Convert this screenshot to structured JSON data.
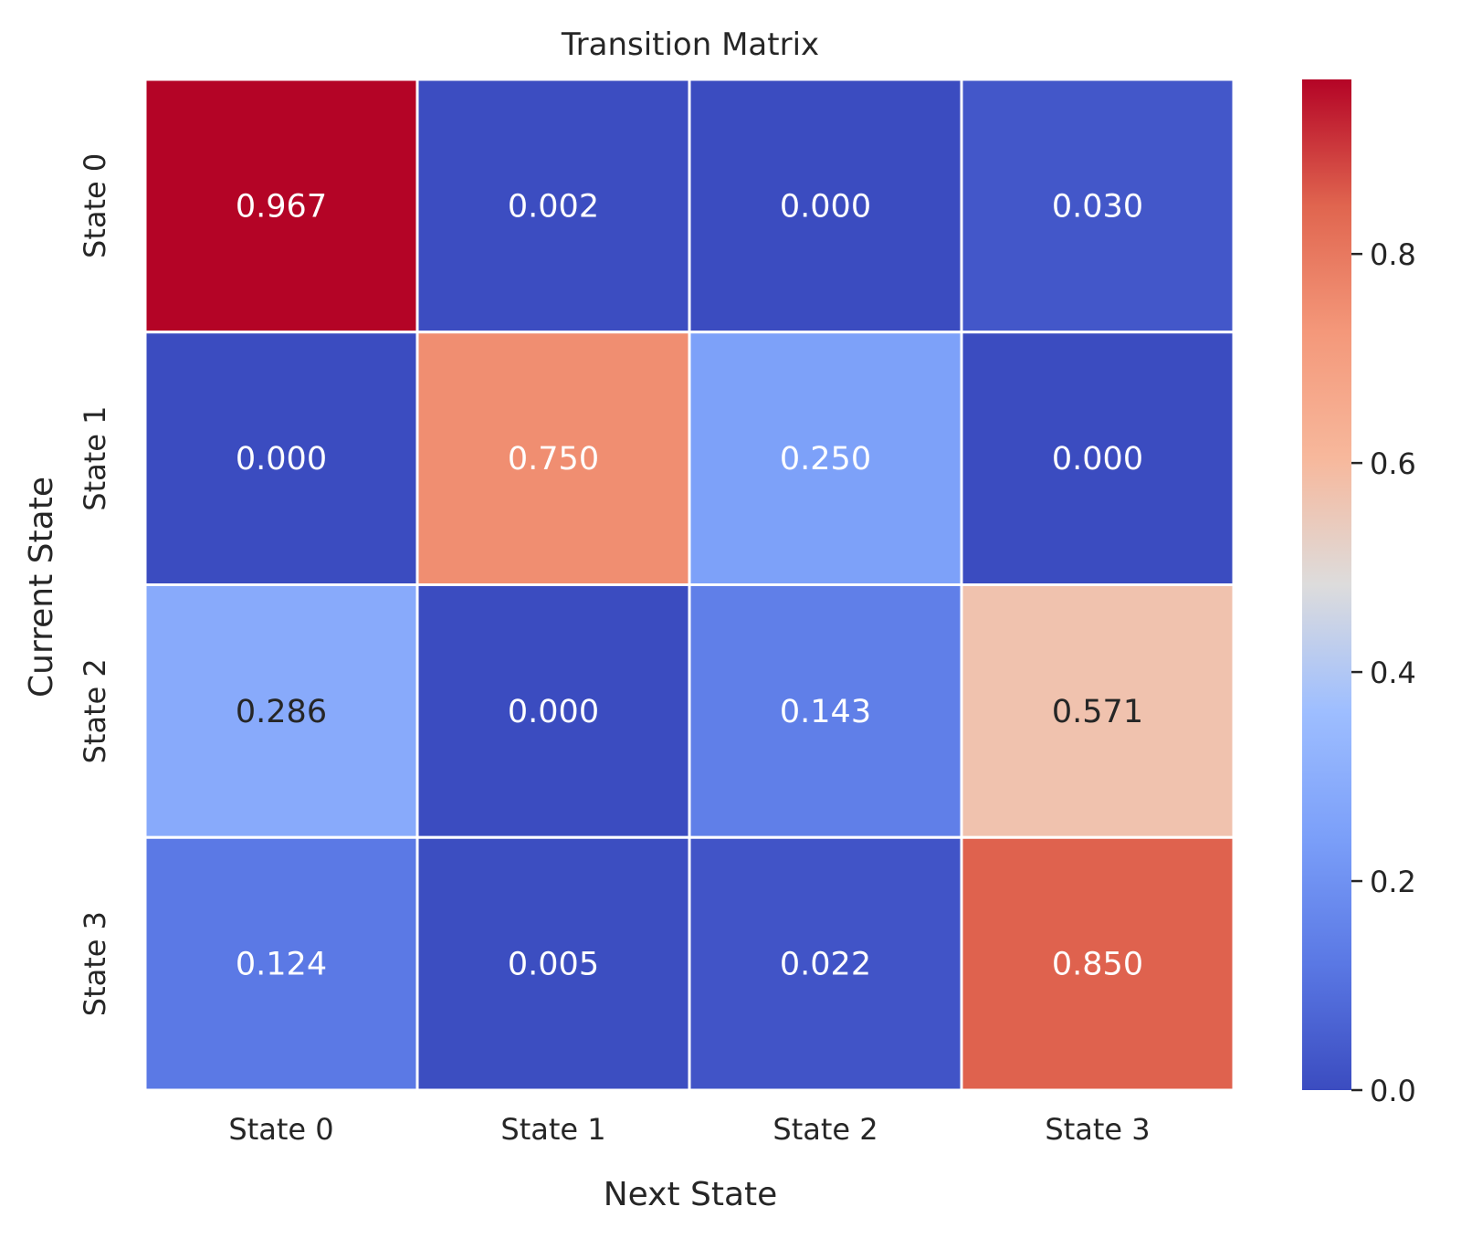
{
  "chart_data": {
    "type": "heatmap",
    "title": "Transition Matrix",
    "xlabel": "Next State",
    "ylabel": "Current State",
    "x_categories": [
      "State 0",
      "State 1",
      "State 2",
      "State 3"
    ],
    "y_categories": [
      "State 0",
      "State 1",
      "State 2",
      "State 3"
    ],
    "values": [
      [
        0.967,
        0.002,
        0.0,
        0.03
      ],
      [
        0.0,
        0.75,
        0.25,
        0.0
      ],
      [
        0.286,
        0.0,
        0.143,
        0.571
      ],
      [
        0.124,
        0.005,
        0.022,
        0.85
      ]
    ],
    "value_labels": [
      [
        "0.967",
        "0.002",
        "0.000",
        "0.030"
      ],
      [
        "0.000",
        "0.750",
        "0.250",
        "0.000"
      ],
      [
        "0.286",
        "0.000",
        "0.143",
        "0.571"
      ],
      [
        "0.124",
        "0.005",
        "0.022",
        "0.850"
      ]
    ],
    "colorscale": "coolwarm",
    "vmin": 0.0,
    "vmax": 0.967,
    "colorbar": {
      "ticks": [
        0.0,
        0.2,
        0.4,
        0.6,
        0.8
      ],
      "tick_labels": [
        "0.0",
        "0.2",
        "0.4",
        "0.6",
        "0.8"
      ]
    },
    "cell_border_color": "#ffffff",
    "text_color_dark": "#262626",
    "text_color_light": "#ffffff"
  }
}
